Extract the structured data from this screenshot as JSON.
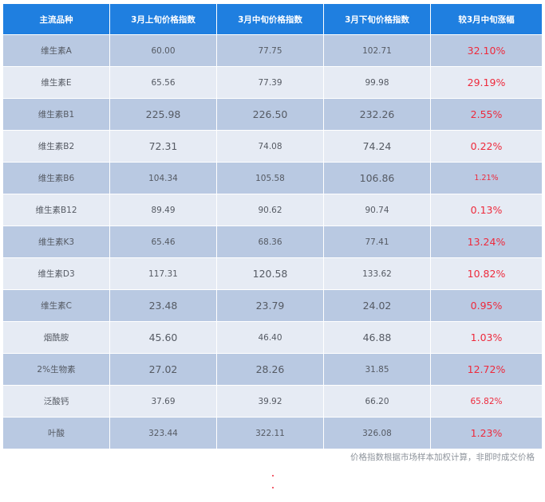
{
  "headers": [
    "主流品种",
    "3月上旬价格指数",
    "3月中旬价格指数",
    "3月下旬价格指数",
    "较3月中旬涨幅"
  ],
  "rows": [
    {
      "name": "维生素A",
      "early": "60.00",
      "mid": "77.75",
      "late": "102.71",
      "change": "32.10%"
    },
    {
      "name": "维生素E",
      "early": "65.56",
      "mid": "77.39",
      "late": "99.98",
      "change": "29.19%"
    },
    {
      "name": "维生素B1",
      "early": "225.98",
      "mid": "226.50",
      "late": "232.26",
      "change": "2.55%"
    },
    {
      "name": "维生素B2",
      "early": "72.31",
      "mid": "74.08",
      "late": "74.24",
      "change": "0.22%"
    },
    {
      "name": "维生素B6",
      "early": "104.34",
      "mid": "105.58",
      "late": "106.86",
      "change": "1.21%"
    },
    {
      "name": "维生素B12",
      "early": "89.49",
      "mid": "90.62",
      "late": "90.74",
      "change": "0.13%"
    },
    {
      "name": "维生素K3",
      "early": "65.46",
      "mid": "68.36",
      "late": "77.41",
      "change": "13.24%"
    },
    {
      "name": "维生素D3",
      "early": "117.31",
      "mid": "120.58",
      "late": "133.62",
      "change": "10.82%"
    },
    {
      "name": "维生素C",
      "early": "23.48",
      "mid": "23.79",
      "late": "24.02",
      "change": "0.95%"
    },
    {
      "name": "烟酰胺",
      "early": "45.60",
      "mid": "46.40",
      "late": "46.88",
      "change": "1.03%"
    },
    {
      "name": "2%生物素",
      "early": "27.02",
      "mid": "28.26",
      "late": "31.85",
      "change": "12.72%"
    },
    {
      "name": "泛酸钙",
      "early": "37.69",
      "mid": "39.92",
      "late": "66.20",
      "change": "65.82%"
    },
    {
      "name": "叶酸",
      "early": "323.44",
      "mid": "322.11",
      "late": "326.08",
      "change": "1.23%"
    }
  ],
  "footnote": "价格指数根据市场样本加权计算，非即时成交价格",
  "colors": {
    "header": "#1f7fe0",
    "row_dark": "#b9c9e2",
    "row_light": "#e6ebf4",
    "change_text": "#ee2a3c"
  }
}
